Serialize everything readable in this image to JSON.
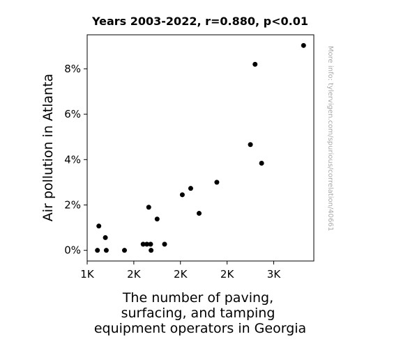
{
  "chart_data": {
    "type": "scatter",
    "title": "Years 2003-2022, r=0.880, p<0.01",
    "xlabel": [
      "The number of paving,",
      "surfacing, and tamping",
      "equipment operators in Georgia"
    ],
    "ylabel": "Air pollution in Atlanta",
    "side_note": "More info: tylervigen.com/spurious/correlation/40661",
    "xlim": [
      1000,
      3430
    ],
    "ylim": [
      -0.47,
      9.5
    ],
    "x_ticks": [
      {
        "value": 1000,
        "label": "1K"
      },
      {
        "value": 1500,
        "label": "2K"
      },
      {
        "value": 2000,
        "label": "2K"
      },
      {
        "value": 2500,
        "label": "2K"
      },
      {
        "value": 3000,
        "label": "3K"
      }
    ],
    "y_ticks": [
      {
        "value": 0,
        "label": "0%"
      },
      {
        "value": 2,
        "label": "2%"
      },
      {
        "value": 4,
        "label": "4%"
      },
      {
        "value": 6,
        "label": "6%"
      },
      {
        "value": 8,
        "label": "8%"
      }
    ],
    "grid": false,
    "point_color": "#000000",
    "points": [
      {
        "x": 1110,
        "y": 0.0
      },
      {
        "x": 1125,
        "y": 1.07
      },
      {
        "x": 1195,
        "y": 0.56
      },
      {
        "x": 1205,
        "y": 0.0
      },
      {
        "x": 1400,
        "y": 0.0
      },
      {
        "x": 1600,
        "y": 0.27
      },
      {
        "x": 1640,
        "y": 0.27
      },
      {
        "x": 1660,
        "y": 1.9
      },
      {
        "x": 1680,
        "y": 0.27
      },
      {
        "x": 1685,
        "y": 0.0
      },
      {
        "x": 1750,
        "y": 1.38
      },
      {
        "x": 1830,
        "y": 0.27
      },
      {
        "x": 2020,
        "y": 2.45
      },
      {
        "x": 2110,
        "y": 2.73
      },
      {
        "x": 2200,
        "y": 1.63
      },
      {
        "x": 2390,
        "y": 3.0
      },
      {
        "x": 2750,
        "y": 4.66
      },
      {
        "x": 2800,
        "y": 8.2
      },
      {
        "x": 2870,
        "y": 3.84
      },
      {
        "x": 3320,
        "y": 9.03
      }
    ]
  }
}
